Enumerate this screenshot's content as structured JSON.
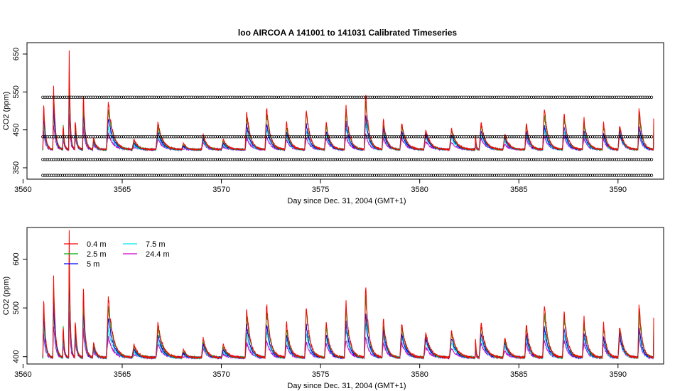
{
  "title": "loo   AIRCOA  A    141001  to  141031   Calibrated Timeseries",
  "chart_data": [
    {
      "type": "line",
      "title": "loo   AIRCOA  A    141001  to  141031   Calibrated Timeseries",
      "xlabel": "Day since Dec. 31, 2004 (GMT+1)",
      "ylabel": "CO2 (ppm)",
      "xlim": [
        3560.2,
        3592.3
      ],
      "ylim": [
        320,
        680
      ],
      "x_ticks": [
        "3560",
        "3565",
        "3570",
        "3575",
        "3580",
        "3585",
        "3590"
      ],
      "y_ticks": [
        "350",
        "450",
        "550",
        "650"
      ],
      "grid": false,
      "legend": "none",
      "series": [
        {
          "color": "#ff0000",
          "x": [
            3561.0,
            3561.5,
            3562.0,
            3562.3,
            3562.6,
            3563.0,
            3563.5,
            3564.2,
            3565.5,
            3566.7,
            3568.0,
            3569.0,
            3570.0,
            3571.2,
            3572.2,
            3573.2,
            3574.2,
            3575.2,
            3576.2,
            3577.2,
            3578.1,
            3579.0,
            3580.2,
            3581.5,
            3582.8,
            3583.0,
            3584.2,
            3585.3,
            3586.2,
            3587.2,
            3588.2,
            3589.2,
            3590.0,
            3591.0,
            3591.8
          ],
          "values": [
            520,
            560,
            470,
            660,
            480,
            545,
            430,
            520,
            425,
            470,
            415,
            440,
            425,
            500,
            510,
            470,
            505,
            470,
            510,
            545,
            480,
            470,
            450,
            455,
            440,
            470,
            440,
            470,
            510,
            495,
            480,
            470,
            465,
            510,
            480
          ]
        },
        {
          "color": "#00aa00",
          "x": [
            3561.0,
            3561.5,
            3562.0,
            3562.3,
            3562.6,
            3563.0,
            3563.5,
            3564.2,
            3565.5,
            3566.7,
            3568.0,
            3569.0,
            3570.0,
            3571.2,
            3572.2,
            3573.2,
            3574.2,
            3575.2,
            3576.2,
            3577.2,
            3578.1,
            3579.0,
            3580.2,
            3581.5,
            3582.8,
            3583.0,
            3584.2,
            3585.3,
            3586.2,
            3587.2,
            3588.2,
            3589.2,
            3590.0,
            3591.0,
            3591.8
          ],
          "values": [
            510,
            550,
            465,
            640,
            470,
            535,
            425,
            505,
            420,
            460,
            412,
            435,
            420,
            490,
            500,
            460,
            495,
            462,
            500,
            530,
            470,
            462,
            445,
            448,
            435,
            462,
            435,
            462,
            495,
            485,
            470,
            462,
            458,
            495,
            470
          ]
        },
        {
          "color": "#0000ff",
          "x": [
            3561.0,
            3561.5,
            3562.0,
            3562.3,
            3562.6,
            3563.0,
            3563.5,
            3564.2,
            3565.5,
            3566.7,
            3568.0,
            3569.0,
            3570.0,
            3571.2,
            3572.2,
            3573.2,
            3574.2,
            3575.2,
            3576.2,
            3577.2,
            3578.1,
            3579.0,
            3580.2,
            3581.5,
            3582.8,
            3583.0,
            3584.2,
            3585.3,
            3586.2,
            3587.2,
            3588.2,
            3589.2,
            3590.0,
            3591.0,
            3591.8
          ],
          "values": [
            490,
            520,
            450,
            600,
            455,
            510,
            420,
            480,
            415,
            445,
            408,
            428,
            415,
            465,
            470,
            445,
            465,
            448,
            470,
            490,
            455,
            448,
            438,
            438,
            428,
            448,
            428,
            448,
            465,
            460,
            450,
            445,
            448,
            465,
            448
          ]
        },
        {
          "color": "#00e5ee",
          "x": [
            3561.0,
            3561.5,
            3562.0,
            3562.3,
            3562.6,
            3563.0,
            3563.5,
            3564.2,
            3565.5,
            3566.7,
            3568.0,
            3569.0,
            3570.0,
            3571.2,
            3572.2,
            3573.2,
            3574.2,
            3575.2,
            3576.2,
            3577.2,
            3578.1,
            3579.0,
            3580.2,
            3581.5,
            3582.8,
            3583.0,
            3584.2,
            3585.3,
            3586.2,
            3587.2,
            3588.2,
            3589.2,
            3590.0,
            3591.0,
            3591.8
          ],
          "values": [
            470,
            500,
            440,
            560,
            445,
            490,
            415,
            460,
            410,
            435,
            405,
            422,
            410,
            450,
            455,
            435,
            450,
            440,
            455,
            470,
            445,
            440,
            432,
            430,
            422,
            440,
            422,
            440,
            450,
            448,
            440,
            438,
            442,
            450,
            440
          ]
        },
        {
          "color": "#cc00cc",
          "x": [
            3561.0,
            3561.5,
            3562.0,
            3562.3,
            3562.6,
            3563.0,
            3563.5,
            3564.2,
            3565.5,
            3566.7,
            3568.0,
            3569.0,
            3570.0,
            3571.2,
            3572.2,
            3573.2,
            3574.2,
            3575.2,
            3576.2,
            3577.2,
            3578.1,
            3579.0,
            3580.2,
            3581.5,
            3582.8,
            3583.0,
            3584.2,
            3585.3,
            3586.2,
            3587.2,
            3588.2,
            3589.2,
            3590.0,
            3591.0,
            3591.8
          ],
          "values": [
            445,
            470,
            430,
            500,
            435,
            460,
            410,
            440,
            405,
            425,
            400,
            415,
            405,
            430,
            435,
            425,
            430,
            428,
            435,
            440,
            430,
            428,
            420,
            418,
            410,
            428,
            412,
            428,
            435,
            435,
            428,
            428,
            438,
            440,
            432
          ]
        },
        {
          "color": "#000000",
          "marker": "open-circle",
          "x_range": [
            3561.0,
            3591.8
          ],
          "values_constant": [
            330,
            372,
            432,
            536
          ]
        }
      ]
    },
    {
      "type": "line",
      "xlabel": "Day since Dec. 31, 2004 (GMT+1)",
      "ylabel": "CO2 (ppm)",
      "xlim": [
        3560.2,
        3592.3
      ],
      "ylim": [
        385,
        665
      ],
      "x_ticks": [
        "3560",
        "3565",
        "3570",
        "3575",
        "3580",
        "3585",
        "3590"
      ],
      "y_ticks": [
        "400",
        "500",
        "600"
      ],
      "grid": false,
      "legend": "top-left",
      "series": [
        {
          "name": "0.4 m",
          "color": "#ff0000"
        },
        {
          "name": "2.5 m",
          "color": "#00aa00"
        },
        {
          "name": "5 m",
          "color": "#0000ff"
        },
        {
          "name": "7.5 m",
          "color": "#00e5ee"
        },
        {
          "name": "24.4 m",
          "color": "#cc00cc"
        }
      ]
    }
  ]
}
